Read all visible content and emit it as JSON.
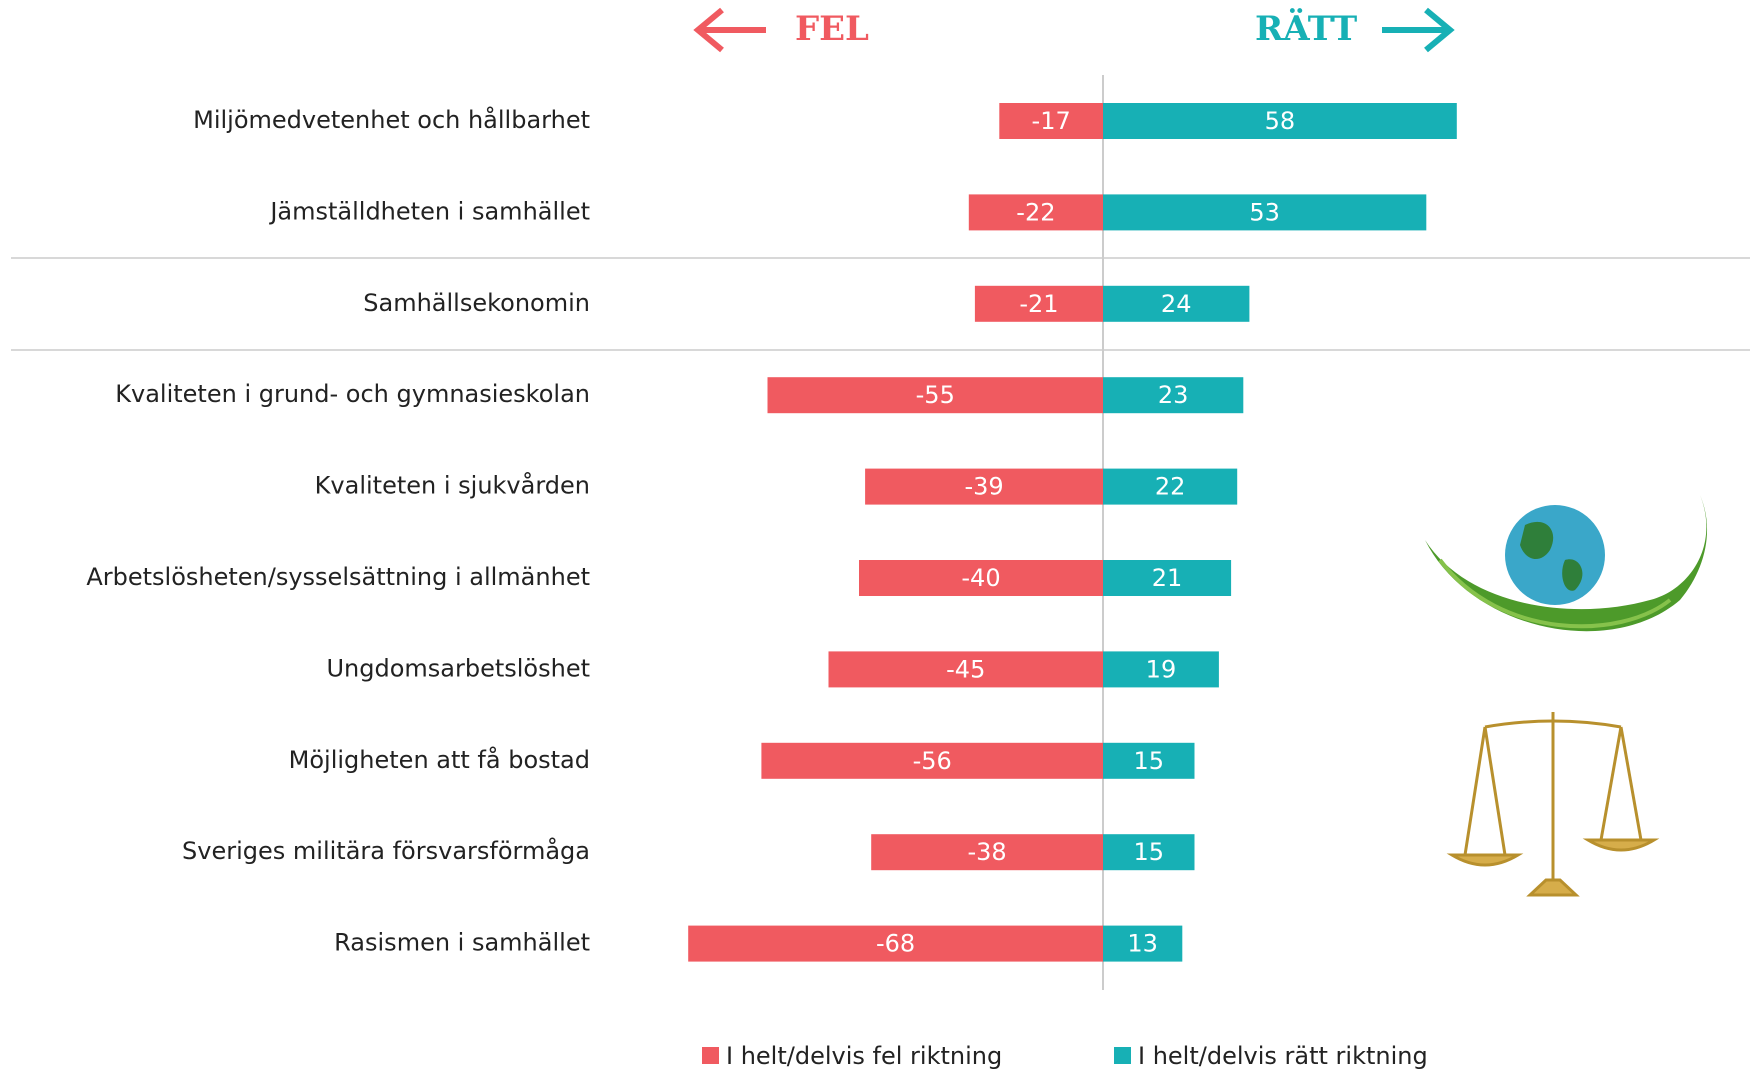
{
  "chart_data": {
    "type": "diverging-bar",
    "left_header": "FEL",
    "right_header": "RÄTT",
    "categories": [
      "Miljömedvetenhet och hållbarhet",
      "Jämställdheten i samhället",
      "Samhällsekonomin",
      "Kvaliteten i grund- och gymnasieskolan",
      "Kvaliteten i sjukvården",
      "Arbetslösheten/sysselsättning i allmänhet",
      "Ungdomsarbetslöshet",
      "Möjligheten att få bostad",
      "Sveriges militära försvarsförmåga",
      "Rasismen i samhället"
    ],
    "series": [
      {
        "name": "I helt/delvis fel riktning",
        "color": "#f05a60",
        "values": [
          -17,
          -22,
          -21,
          -55,
          -39,
          -40,
          -45,
          -56,
          -38,
          -68
        ]
      },
      {
        "name": "I helt/delvis rätt riktning",
        "color": "#17b0b5",
        "values": [
          58,
          53,
          24,
          23,
          22,
          21,
          19,
          15,
          15,
          13
        ]
      }
    ]
  }
}
